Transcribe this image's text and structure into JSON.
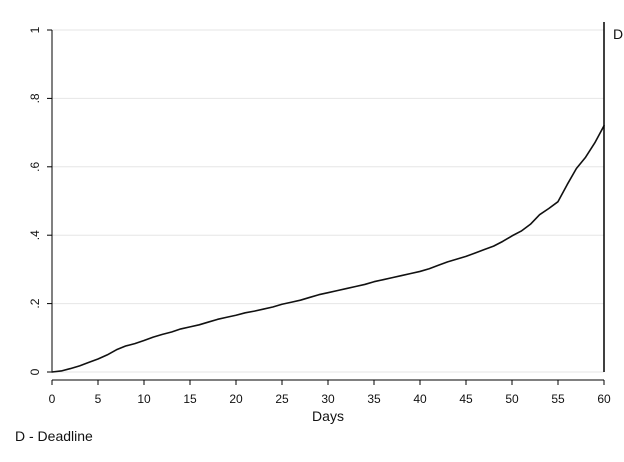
{
  "chart_data": {
    "type": "line",
    "title": "",
    "xlabel": "Days",
    "ylabel": "",
    "xlim": [
      0,
      60
    ],
    "ylim": [
      0,
      1
    ],
    "x_ticks": [
      0,
      5,
      10,
      15,
      20,
      25,
      30,
      35,
      40,
      45,
      50,
      55,
      60
    ],
    "y_ticks": [
      0,
      0.2,
      0.4,
      0.6,
      0.8,
      1
    ],
    "x_tick_labels": [
      "0",
      "5",
      "10",
      "15",
      "20",
      "25",
      "30",
      "35",
      "40",
      "45",
      "50",
      "55",
      "60"
    ],
    "y_tick_labels": [
      "0",
      ".2",
      ".4",
      ".6",
      ".8",
      "1"
    ],
    "grid": true,
    "series": [
      {
        "x": [
          0,
          1,
          2,
          3,
          4,
          5,
          6,
          7,
          8,
          9,
          10,
          11,
          12,
          13,
          14,
          15,
          16,
          17,
          18,
          19,
          20,
          21,
          22,
          23,
          24,
          25,
          26,
          27,
          28,
          29,
          30,
          31,
          32,
          33,
          34,
          35,
          36,
          37,
          38,
          39,
          40,
          41,
          42,
          43,
          44,
          45,
          46,
          47,
          48,
          49,
          50,
          51,
          52,
          53,
          54,
          55,
          56,
          57,
          58,
          59,
          60
        ],
        "y": [
          0,
          0.003,
          0.01,
          0.018,
          0.028,
          0.038,
          0.05,
          0.065,
          0.076,
          0.083,
          0.092,
          0.102,
          0.11,
          0.117,
          0.126,
          0.132,
          0.138,
          0.146,
          0.154,
          0.16,
          0.166,
          0.173,
          0.178,
          0.184,
          0.19,
          0.198,
          0.204,
          0.21,
          0.218,
          0.226,
          0.232,
          0.238,
          0.244,
          0.25,
          0.256,
          0.264,
          0.27,
          0.276,
          0.282,
          0.288,
          0.294,
          0.302,
          0.312,
          0.322,
          0.33,
          0.338,
          0.348,
          0.358,
          0.368,
          0.382,
          0.398,
          0.412,
          0.432,
          0.46,
          0.478,
          0.498,
          0.548,
          0.595,
          0.628,
          0.67,
          0.72
        ]
      }
    ],
    "vertical_marker": {
      "x": 60,
      "label": "D"
    },
    "note": "D - Deadline",
    "colors": {
      "line": "#111111",
      "grid": "#e6e6e6",
      "axis": "#000000"
    }
  }
}
